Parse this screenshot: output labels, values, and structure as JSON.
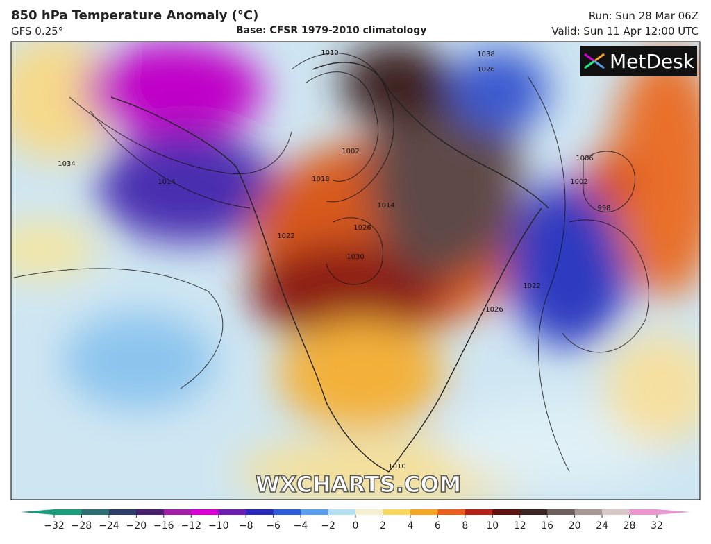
{
  "header": {
    "title": "850 hPa Temperature Anomaly (°C)",
    "model": "GFS 0.25°",
    "base": "Base: CFSR 1979-2010 climatology",
    "run": "Run: Sun 28 Mar 06Z",
    "valid": "Valid: Sun 11 Apr 12:00 UTC"
  },
  "logo": "MetDesk",
  "watermark": "WXCHARTS.COM",
  "isobar_labels": [
    "1010",
    "1038",
    "1026",
    "1034",
    "1014",
    "1002",
    "1018",
    "1014",
    "1026",
    "1022",
    "1030",
    "1006",
    "1002",
    "998",
    "1022",
    "1026",
    "1010"
  ],
  "colorbar": {
    "ticks": [
      {
        "value": -32,
        "label": "−32"
      },
      {
        "value": -28,
        "label": "−28"
      },
      {
        "value": -24,
        "label": "−24"
      },
      {
        "value": -20,
        "label": "−20"
      },
      {
        "value": -16,
        "label": "−16"
      },
      {
        "value": -12,
        "label": "−12"
      },
      {
        "value": -10,
        "label": "−10"
      },
      {
        "value": -8,
        "label": "−8"
      },
      {
        "value": -6,
        "label": "−6"
      },
      {
        "value": -4,
        "label": "−4"
      },
      {
        "value": -2,
        "label": "−2"
      },
      0,
      2,
      4,
      6,
      8,
      10,
      12,
      16,
      20,
      24,
      28,
      32
    ],
    "colors": [
      "#1a9c7c",
      "#2c6e73",
      "#2b3f66",
      "#4a1f6b",
      "#a21fa8",
      "#d400d4",
      "#6a1fb0",
      "#2a2ab8",
      "#2e5bd8",
      "#5aa0e8",
      "#b8e0f2",
      "#f4f0d0",
      "#f8d860",
      "#f5a623",
      "#e8601e",
      "#b4231a",
      "#5c1410",
      "#3c2420",
      "#6e605c",
      "#a89894",
      "#d8c8c8",
      "#e898d0"
    ]
  }
}
